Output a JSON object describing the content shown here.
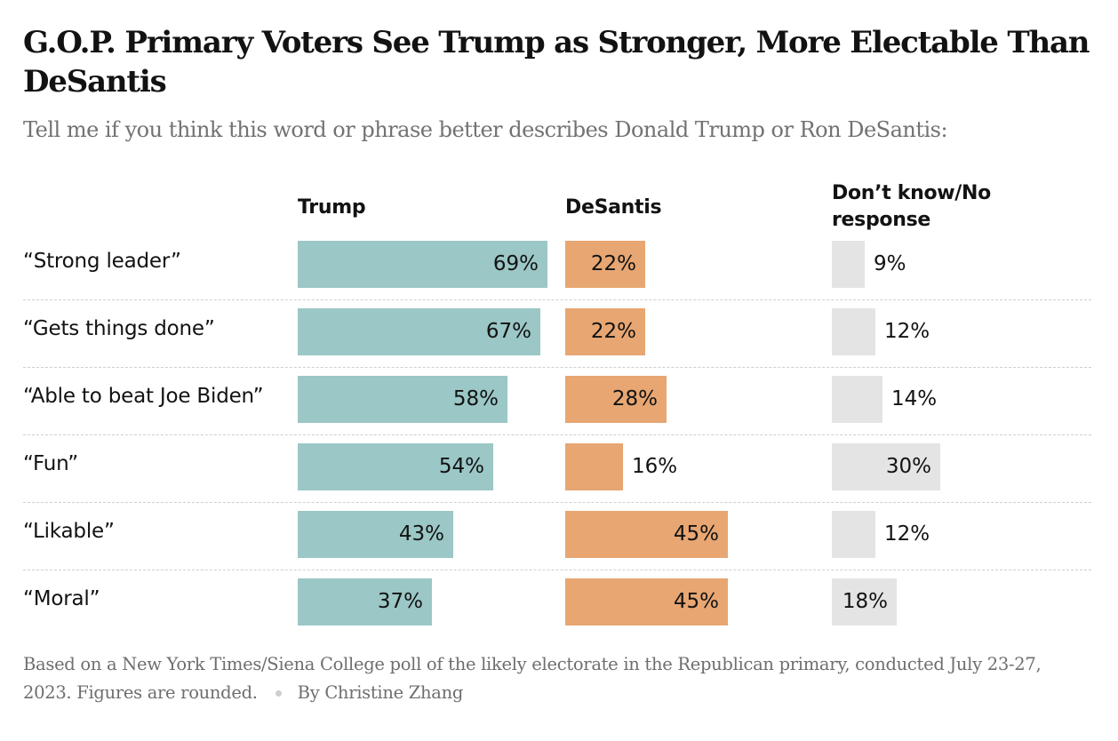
{
  "title": "G.O.P. Primary Voters See Trump as Stronger, More Electable Than DeSantis",
  "subtitle": "Tell me if you think this word or phrase better describes Donald Trump or Ron DeSantis:",
  "columns": {
    "trump": "Trump",
    "desantis": "DeSantis",
    "dont_know": "Don’t know/No response"
  },
  "colors": {
    "trump": "#9bc7c6",
    "desantis": "#e7a672",
    "dont_know": "#e4e4e4"
  },
  "chart_data": {
    "type": "bar",
    "orientation": "horizontal",
    "title": "G.O.P. Primary Voters See Trump as Stronger, More Electable Than DeSantis",
    "subtitle": "Tell me if you think this word or phrase better describes Donald Trump or Ron DeSantis:",
    "categories": [
      "“Strong leader”",
      "“Gets things done”",
      "“Able to beat Joe Biden”",
      "“Fun”",
      "“Likable”",
      "“Moral”"
    ],
    "unit": "%",
    "series": [
      {
        "key": "trump",
        "name": "Trump",
        "values": [
          69,
          67,
          58,
          54,
          43,
          37
        ]
      },
      {
        "key": "desantis",
        "name": "DeSantis",
        "values": [
          22,
          22,
          28,
          16,
          45,
          45
        ]
      },
      {
        "key": "dont_know",
        "name": "Don’t know/No response",
        "values": [
          9,
          12,
          14,
          30,
          12,
          18
        ]
      }
    ],
    "labels": {
      "trump": [
        "69%",
        "67%",
        "58%",
        "54%",
        "43%",
        "37%"
      ],
      "desantis": [
        "22%",
        "22%",
        "28%",
        "16%",
        "45%",
        "45%"
      ],
      "dont_know": [
        "9%",
        "12%",
        "14%",
        "30%",
        "12%",
        "18%"
      ]
    },
    "xlim": [
      0,
      100
    ]
  },
  "footer": {
    "source": "Based on a New York Times/Siena College poll of the likely electorate in the Republican primary, conducted July 23-27, 2023. Figures are rounded.",
    "byline": "By Christine Zhang"
  }
}
